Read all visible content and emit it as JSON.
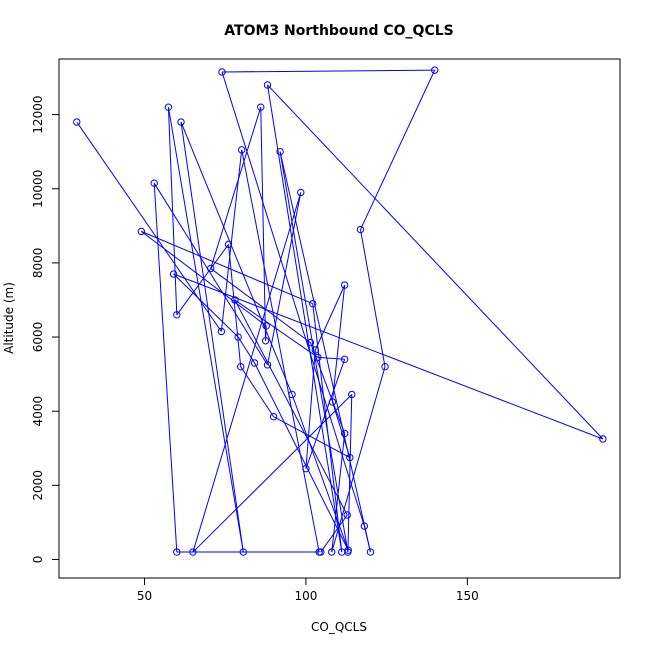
{
  "chart_data": {
    "type": "line",
    "title": "ATOM3 Northbound CO_QCLS",
    "xlabel": "CO_QCLS",
    "ylabel": "Altitude (m)",
    "xlim": [
      23.5,
      197.3
    ],
    "ylim": [
      -500,
      13500
    ],
    "x_ticks": [
      50,
      100,
      150
    ],
    "x_tick_labels": [
      "50",
      "100",
      "150"
    ],
    "y_ticks": [
      0,
      2000,
      4000,
      6000,
      8000,
      10000,
      12000
    ],
    "y_tick_labels": [
      "0",
      "2000",
      "4000",
      "6000",
      "8000",
      "10000",
      "12000"
    ],
    "grid": false,
    "series": [
      {
        "color": "#0000ff",
        "marker": "open-circle",
        "line": true,
        "points": [
          [
            29.0,
            11800
          ],
          [
            73.8,
            6150
          ],
          [
            80.1,
            11050
          ],
          [
            104.1,
            200
          ],
          [
            60.0,
            200
          ],
          [
            53.0,
            10150
          ],
          [
            88.1,
            5250
          ],
          [
            98.4,
            9900
          ],
          [
            65.0,
            200
          ],
          [
            114.2,
            4450
          ],
          [
            113.0,
            200
          ],
          [
            92.0,
            11000
          ],
          [
            120.0,
            200
          ],
          [
            118.1,
            900
          ],
          [
            74.0,
            13150
          ],
          [
            139.9,
            13200
          ],
          [
            116.9,
            8900
          ],
          [
            124.5,
            5200
          ],
          [
            108.0,
            200
          ],
          [
            112.0,
            3400
          ],
          [
            101.4,
            5850
          ],
          [
            70.5,
            7850
          ],
          [
            86.0,
            12200
          ],
          [
            87.5,
            5900
          ],
          [
            87.7,
            6300
          ],
          [
            49.0,
            8850
          ],
          [
            102.1,
            6900
          ],
          [
            111.1,
            200
          ],
          [
            88.1,
            12800
          ],
          [
            192.0,
            3250
          ],
          [
            59.0,
            7700
          ],
          [
            79.0,
            6000
          ],
          [
            84.1,
            5300
          ],
          [
            113.1,
            250
          ],
          [
            95.7,
            4450
          ],
          [
            61.3,
            11800
          ],
          [
            80.6,
            200
          ],
          [
            57.4,
            12200
          ],
          [
            60.0,
            6600
          ],
          [
            76.0,
            8500
          ],
          [
            79.8,
            5200
          ],
          [
            90.0,
            3850
          ],
          [
            113.6,
            2750
          ],
          [
            108.2,
            4250
          ],
          [
            112.0,
            7400
          ],
          [
            102.9,
            5650
          ],
          [
            100.0,
            2450
          ],
          [
            112.0,
            5400
          ],
          [
            103.7,
            5450
          ],
          [
            78.0,
            7000
          ],
          [
            112.8,
            1200
          ],
          [
            104.6,
            200
          ]
        ]
      }
    ]
  }
}
